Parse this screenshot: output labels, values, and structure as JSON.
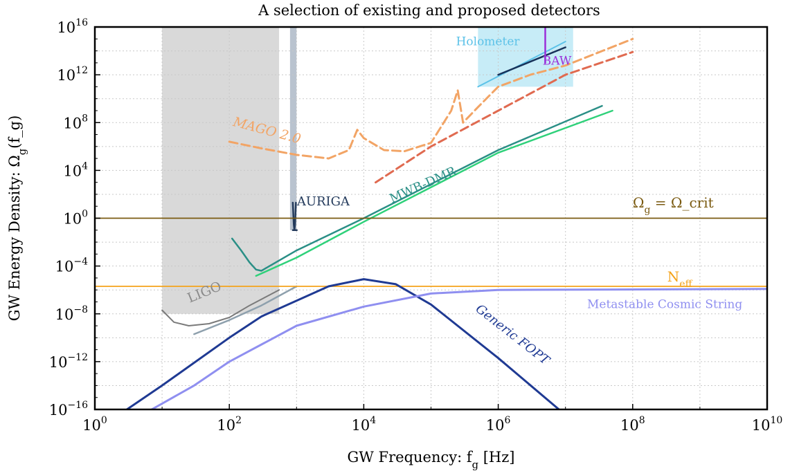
{
  "chart_data": {
    "type": "line",
    "title": "A selection of existing and proposed detectors",
    "xlabel": "GW Frequency: f_g [Hz]",
    "ylabel": "GW Energy Density: Ω_g(f_g)",
    "x_scale": "log",
    "y_scale": "log",
    "xlim": [
      1,
      10000000000.0
    ],
    "ylim": [
      1e-16,
      1e+16
    ],
    "grid": true,
    "x_ticks": [
      {
        "value": 1,
        "base": "10",
        "exp": "0"
      },
      {
        "value": 100,
        "base": "10",
        "exp": "2"
      },
      {
        "value": 10000,
        "base": "10",
        "exp": "4"
      },
      {
        "value": 1000000,
        "base": "10",
        "exp": "6"
      },
      {
        "value": 100000000,
        "base": "10",
        "exp": "8"
      },
      {
        "value": 10000000000,
        "base": "10",
        "exp": "10"
      }
    ],
    "y_ticks": [
      {
        "value": 1e-16,
        "base": "10",
        "exp": "−16"
      },
      {
        "value": 1e-12,
        "base": "10",
        "exp": "−12"
      },
      {
        "value": 1e-08,
        "base": "10",
        "exp": "−8"
      },
      {
        "value": 0.0001,
        "base": "10",
        "exp": "−4"
      },
      {
        "value": 1,
        "base": "10",
        "exp": "0"
      },
      {
        "value": 10000.0,
        "base": "10",
        "exp": "4"
      },
      {
        "value": 100000000.0,
        "base": "10",
        "exp": "8"
      },
      {
        "value": 1000000000000.0,
        "base": "10",
        "exp": "12"
      },
      {
        "value": 1e+16,
        "base": "10",
        "exp": "16"
      }
    ],
    "bands": [
      {
        "name": "LIGO region",
        "x": [
          10,
          550
        ],
        "y": [
          1e-08,
          1e+16
        ],
        "color": "#d9d9d9"
      },
      {
        "name": "AURIGA region",
        "x": [
          800,
          1000
        ],
        "y": [
          0.1,
          1e+16
        ],
        "color": "#b9c3cf"
      },
      {
        "name": "Holometer region",
        "x": [
          500000,
          13000000
        ],
        "y": [
          100000000000.0,
          1e+16
        ],
        "color": "#c7ecf7"
      }
    ],
    "series": [
      {
        "key": "ligo",
        "color": "#7a7a7a",
        "width": 2,
        "dash": "",
        "points": [
          [
            10,
            2e-08
          ],
          [
            15,
            2e-09
          ],
          [
            25,
            1e-09
          ],
          [
            50,
            1.5e-09
          ],
          [
            100,
            5e-09
          ],
          [
            200,
            5e-08
          ],
          [
            550,
            1e-06
          ]
        ]
      },
      {
        "key": "ligo2",
        "color": "#8ea0ad",
        "width": 2.5,
        "dash": "",
        "points": [
          [
            30,
            2e-10
          ],
          [
            100,
            3e-09
          ],
          [
            300,
            5e-08
          ],
          [
            1000,
            2e-06
          ]
        ]
      },
      {
        "key": "auriga",
        "color": "#243b5c",
        "width": 2.5,
        "dash": "",
        "points": [
          [
            880,
            20.0
          ],
          [
            910,
            0.3
          ],
          [
            930,
            0.1
          ],
          [
            950,
            0.3
          ],
          [
            980,
            20.0
          ]
        ]
      },
      {
        "key": "auriga-bar",
        "color": "#243b5c",
        "width": 2.5,
        "dash": "",
        "points": [
          [
            880,
            0.1
          ],
          [
            1010,
            0.1
          ]
        ]
      },
      {
        "key": "mwb-dmr-teal",
        "color": "#2a8f86",
        "width": 2.5,
        "dash": "",
        "points": [
          [
            110,
            0.02
          ],
          [
            150,
            0.002
          ],
          [
            200,
            0.0002
          ],
          [
            250,
            5e-05
          ],
          [
            300,
            4e-05
          ],
          [
            1000,
            0.002
          ],
          [
            10000,
            1
          ],
          [
            1000000,
            500000.0
          ],
          [
            35000000,
            2500000000.0
          ]
        ]
      },
      {
        "key": "mwb-dmr-green",
        "color": "#2fd17a",
        "width": 2.5,
        "dash": "",
        "points": [
          [
            250,
            1.5e-05
          ],
          [
            1000,
            0.0005
          ],
          [
            10000,
            0.5
          ],
          [
            1000000,
            300000.0
          ],
          [
            50000000,
            1000000000.0
          ]
        ]
      },
      {
        "key": "mago",
        "color": "#f2a465",
        "width": 3,
        "dash": "12,6",
        "points": [
          [
            100,
            2500000.0
          ],
          [
            300,
            700000.0
          ],
          [
            1000,
            200000.0
          ],
          [
            3000,
            100000.0
          ],
          [
            6000,
            500000.0
          ],
          [
            8000,
            25000000.0
          ],
          [
            10000,
            5000000.0
          ],
          [
            20000,
            500000.0
          ],
          [
            40000,
            400000.0
          ],
          [
            100000,
            2000000.0
          ],
          [
            200000,
            1000000000.0
          ],
          [
            250000,
            50000000000.0
          ],
          [
            300000,
            100000000.0
          ],
          [
            500000,
            2000000000.0
          ],
          [
            1000000,
            100000000000.0
          ],
          [
            3000000,
            1000000000000.0
          ],
          [
            10000000,
            6000000000000.0
          ],
          [
            100000000,
            1000000000000000.0
          ]
        ]
      },
      {
        "key": "mago-red",
        "color": "#e06a50",
        "width": 3,
        "dash": "12,6",
        "points": [
          [
            15000,
            1000.0
          ],
          [
            100000,
            1000000.0
          ],
          [
            1000000,
            1000000000.0
          ],
          [
            10000000,
            1000000000000.0
          ],
          [
            100000000,
            80000000000000.0
          ]
        ]
      },
      {
        "key": "holometer-edge",
        "color": "#5cc2e8",
        "width": 2,
        "dash": "",
        "points": [
          [
            500000,
            100000000000.0
          ],
          [
            10000000,
            600000000000000.0
          ]
        ]
      },
      {
        "key": "holometer-line",
        "color": "#17325a",
        "width": 2.5,
        "dash": "",
        "points": [
          [
            1000000,
            1000000000000.0
          ],
          [
            10000000,
            200000000000000.0
          ]
        ]
      },
      {
        "key": "baw",
        "color": "#9b30d9",
        "width": 2.5,
        "dash": "",
        "points": [
          [
            5000000,
            10000000000000.0
          ],
          [
            5000000,
            1e+16
          ]
        ]
      },
      {
        "key": "omega-crit",
        "color": "#7a5a10",
        "width": 1.8,
        "dash": "",
        "points": [
          [
            1,
            1
          ],
          [
            10000000000,
            1
          ]
        ]
      },
      {
        "key": "neff",
        "color": "#f4a31a",
        "width": 1.8,
        "dash": "",
        "points": [
          [
            1,
            2e-06
          ],
          [
            10000000000,
            2e-06
          ]
        ]
      },
      {
        "key": "generic-fopt",
        "color": "#1f3a93",
        "width": 3,
        "dash": "",
        "points": [
          [
            3,
            1e-16
          ],
          [
            10,
            1e-14
          ],
          [
            100,
            1e-10
          ],
          [
            300,
            6e-09
          ],
          [
            3000,
            2e-06
          ],
          [
            10000,
            8e-06
          ],
          [
            30000,
            3e-06
          ],
          [
            100000,
            6e-08
          ],
          [
            1000000,
            2e-12
          ],
          [
            8000000,
            1e-16
          ]
        ]
      },
      {
        "key": "metastable-cs",
        "color": "#8f8ff0",
        "width": 3,
        "dash": "",
        "points": [
          [
            7,
            1e-16
          ],
          [
            30,
            1e-14
          ],
          [
            100,
            1e-12
          ],
          [
            1000,
            1e-09
          ],
          [
            10000,
            4e-08
          ],
          [
            100000,
            5e-07
          ],
          [
            1000000,
            1e-06
          ],
          [
            10000000000,
            1.2e-06
          ]
        ]
      }
    ],
    "labels": [
      {
        "key": "ligo",
        "text": "LIGO",
        "x": 45,
        "y": 3e-07,
        "color": "#8a8a8a",
        "rotate": -22,
        "size": 19,
        "style": "normal"
      },
      {
        "key": "auriga",
        "text": "AURIGA",
        "x": 2500,
        "y": 12,
        "color": "#243b5c",
        "rotate": 0,
        "size": 18,
        "style": "normal"
      },
      {
        "key": "mwb-dmr",
        "text": "MWB-DMR",
        "x": 80000,
        "y": 300.0,
        "color": "#2a8f86",
        "rotate": -24,
        "size": 18,
        "style": "normal"
      },
      {
        "key": "mago",
        "text": "MAGO 2.0",
        "x": 350,
        "y": 10000000.0,
        "color": "#f2a465",
        "rotate": 15,
        "size": 19,
        "style": "italic"
      },
      {
        "key": "holometer",
        "text": "Holometer",
        "x": 700000,
        "y": 300000000000000.0,
        "color": "#5cc2e8",
        "rotate": 0,
        "size": 17,
        "style": "normal"
      },
      {
        "key": "baw",
        "text": "BAW",
        "x": 7500000,
        "y": 7000000000000.0,
        "color": "#9b30d9",
        "rotate": 0,
        "size": 17,
        "style": "normal"
      },
      {
        "key": "omega-crit",
        "text": "Ω_g = Ω_crit",
        "x": 400000000,
        "y": 8,
        "color": "#7a5a10",
        "rotate": 0,
        "size": 20,
        "style": "normal"
      },
      {
        "key": "neff",
        "text": "N_eff",
        "x": 500000000,
        "y": 5e-06,
        "color": "#f4a31a",
        "rotate": 0,
        "size": 20,
        "style": "normal"
      },
      {
        "key": "metastable-cs",
        "text": "Metastable Cosmic String",
        "x": 300000000,
        "y": 3e-08,
        "color": "#8f8ff0",
        "rotate": 0,
        "size": 17,
        "style": "normal"
      },
      {
        "key": "generic-fopt",
        "text": "Generic FOPT",
        "x": 1500000,
        "y": 1e-10,
        "color": "#1f3a93",
        "rotate": 38,
        "size": 18,
        "style": "italic"
      }
    ]
  }
}
